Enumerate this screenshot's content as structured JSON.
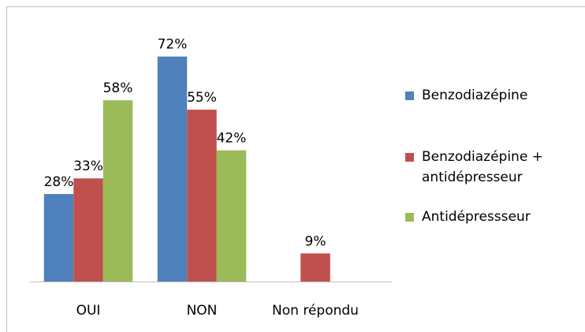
{
  "chart_data": {
    "type": "bar",
    "categories": [
      "OUI",
      "NON",
      "Non répondu"
    ],
    "series": [
      {
        "name": "Benzodiazépine",
        "color": "#4f81bd",
        "values": [
          28,
          72,
          null
        ],
        "value_labels": [
          "28%",
          "72%",
          null
        ]
      },
      {
        "name": "Benzodiazépine + antidépresseur",
        "color": "#c0504d",
        "values": [
          33,
          55,
          9
        ],
        "value_labels": [
          "33%",
          "55%",
          "9%"
        ]
      },
      {
        "name": "Antidépressseur",
        "color": "#9bbb59",
        "values": [
          58,
          42,
          null
        ],
        "value_labels": [
          "58%",
          "42%",
          null
        ]
      }
    ],
    "ylim": [
      0,
      80
    ]
  }
}
